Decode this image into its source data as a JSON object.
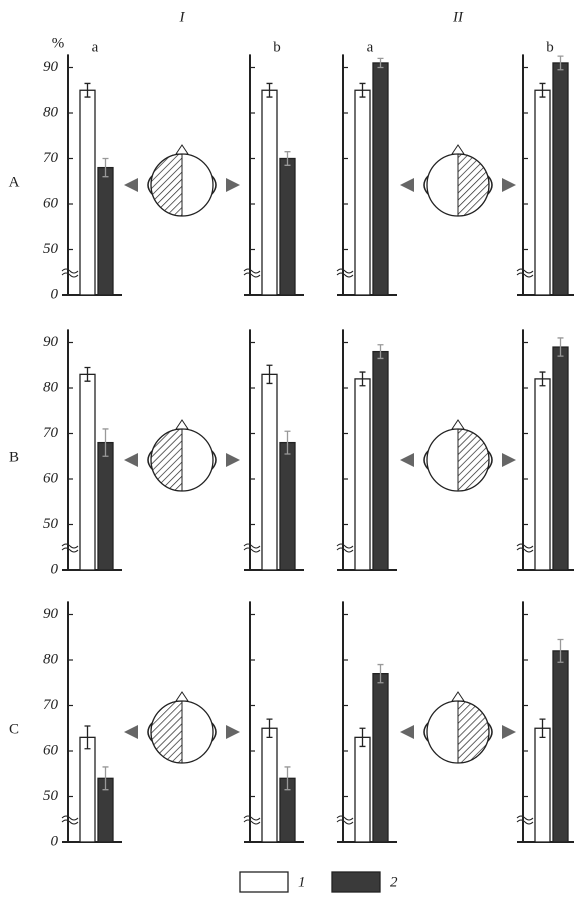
{
  "figure": {
    "columns": [
      "I",
      "II"
    ],
    "rows": [
      "A",
      "B",
      "C"
    ]
  },
  "chart_data": [
    {
      "type": "bar",
      "ylabel": "%",
      "categories": [
        "a"
      ],
      "ylim": [
        0,
        92
      ],
      "ybreak": [
        0,
        40
      ],
      "yticks": [
        0,
        50,
        60,
        70,
        80,
        90
      ],
      "tick_labels": true,
      "series": [
        {
          "name": "1",
          "color": "#ffffff",
          "values": [
            85
          ],
          "errors": [
            1.5
          ]
        },
        {
          "name": "2",
          "color": "#3a3a3a",
          "values": [
            68
          ],
          "errors": [
            2
          ]
        }
      ]
    },
    {
      "type": "bar",
      "categories": [
        "b"
      ],
      "ylim": [
        0,
        92
      ],
      "ybreak": [
        0,
        40
      ],
      "yticks": [
        0,
        50,
        60,
        70,
        80,
        90
      ],
      "tick_labels": false,
      "series": [
        {
          "name": "1",
          "color": "#ffffff",
          "values": [
            85
          ],
          "errors": [
            1.5
          ]
        },
        {
          "name": "2",
          "color": "#3a3a3a",
          "values": [
            70
          ],
          "errors": [
            1.5
          ]
        }
      ]
    },
    {
      "type": "bar",
      "categories": [
        "a"
      ],
      "ylim": [
        0,
        92
      ],
      "ybreak": [
        0,
        40
      ],
      "yticks": [
        0,
        50,
        60,
        70,
        80,
        90
      ],
      "tick_labels": false,
      "series": [
        {
          "name": "1",
          "color": "#ffffff",
          "values": [
            85
          ],
          "errors": [
            1.5
          ]
        },
        {
          "name": "2",
          "color": "#3a3a3a",
          "values": [
            91
          ],
          "errors": [
            1
          ]
        }
      ]
    },
    {
      "type": "bar",
      "categories": [
        "b"
      ],
      "ylim": [
        0,
        92
      ],
      "ybreak": [
        0,
        40
      ],
      "yticks": [
        0,
        50,
        60,
        70,
        80,
        90
      ],
      "tick_labels": false,
      "series": [
        {
          "name": "1",
          "color": "#ffffff",
          "values": [
            85
          ],
          "errors": [
            1.5
          ]
        },
        {
          "name": "2",
          "color": "#3a3a3a",
          "values": [
            91
          ],
          "errors": [
            1.5
          ]
        }
      ]
    },
    {
      "type": "bar",
      "categories": [
        null
      ],
      "ylim": [
        0,
        92
      ],
      "ybreak": [
        0,
        40
      ],
      "yticks": [
        0,
        50,
        60,
        70,
        80,
        90
      ],
      "tick_labels": true,
      "series": [
        {
          "name": "1",
          "color": "#ffffff",
          "values": [
            83
          ],
          "errors": [
            1.5
          ]
        },
        {
          "name": "2",
          "color": "#3a3a3a",
          "values": [
            68
          ],
          "errors": [
            3
          ]
        }
      ]
    },
    {
      "type": "bar",
      "categories": [
        null
      ],
      "ylim": [
        0,
        92
      ],
      "ybreak": [
        0,
        40
      ],
      "yticks": [
        0,
        50,
        60,
        70,
        80,
        90
      ],
      "tick_labels": false,
      "series": [
        {
          "name": "1",
          "color": "#ffffff",
          "values": [
            83
          ],
          "errors": [
            2
          ]
        },
        {
          "name": "2",
          "color": "#3a3a3a",
          "values": [
            68
          ],
          "errors": [
            2.5
          ]
        }
      ]
    },
    {
      "type": "bar",
      "categories": [
        null
      ],
      "ylim": [
        0,
        92
      ],
      "ybreak": [
        0,
        40
      ],
      "yticks": [
        0,
        50,
        60,
        70,
        80,
        90
      ],
      "tick_labels": false,
      "series": [
        {
          "name": "1",
          "color": "#ffffff",
          "values": [
            82
          ],
          "errors": [
            1.5
          ]
        },
        {
          "name": "2",
          "color": "#3a3a3a",
          "values": [
            88
          ],
          "errors": [
            1.5
          ]
        }
      ]
    },
    {
      "type": "bar",
      "categories": [
        null
      ],
      "ylim": [
        0,
        92
      ],
      "ybreak": [
        0,
        40
      ],
      "yticks": [
        0,
        50,
        60,
        70,
        80,
        90
      ],
      "tick_labels": false,
      "series": [
        {
          "name": "1",
          "color": "#ffffff",
          "values": [
            82
          ],
          "errors": [
            1.5
          ]
        },
        {
          "name": "2",
          "color": "#3a3a3a",
          "values": [
            89
          ],
          "errors": [
            2
          ]
        }
      ]
    },
    {
      "type": "bar",
      "categories": [
        null
      ],
      "ylim": [
        0,
        92
      ],
      "ybreak": [
        0,
        40
      ],
      "yticks": [
        0,
        50,
        60,
        70,
        80,
        90
      ],
      "tick_labels": true,
      "series": [
        {
          "name": "1",
          "color": "#ffffff",
          "values": [
            63
          ],
          "errors": [
            2.5
          ]
        },
        {
          "name": "2",
          "color": "#3a3a3a",
          "values": [
            54
          ],
          "errors": [
            2.5
          ]
        }
      ]
    },
    {
      "type": "bar",
      "categories": [
        null
      ],
      "ylim": [
        0,
        92
      ],
      "ybreak": [
        0,
        40
      ],
      "yticks": [
        0,
        50,
        60,
        70,
        80,
        90
      ],
      "tick_labels": false,
      "series": [
        {
          "name": "1",
          "color": "#ffffff",
          "values": [
            65
          ],
          "errors": [
            2
          ]
        },
        {
          "name": "2",
          "color": "#3a3a3a",
          "values": [
            54
          ],
          "errors": [
            2.5
          ]
        }
      ]
    },
    {
      "type": "bar",
      "categories": [
        null
      ],
      "ylim": [
        0,
        92
      ],
      "ybreak": [
        0,
        40
      ],
      "yticks": [
        0,
        50,
        60,
        70,
        80,
        90
      ],
      "tick_labels": false,
      "series": [
        {
          "name": "1",
          "color": "#ffffff",
          "values": [
            63
          ],
          "errors": [
            2
          ]
        },
        {
          "name": "2",
          "color": "#3a3a3a",
          "values": [
            77
          ],
          "errors": [
            2
          ]
        }
      ]
    },
    {
      "type": "bar",
      "categories": [
        null
      ],
      "ylim": [
        0,
        92
      ],
      "ybreak": [
        0,
        40
      ],
      "yticks": [
        0,
        50,
        60,
        70,
        80,
        90
      ],
      "tick_labels": false,
      "series": [
        {
          "name": "1",
          "color": "#ffffff",
          "values": [
            65
          ],
          "errors": [
            2
          ]
        },
        {
          "name": "2",
          "color": "#3a3a3a",
          "values": [
            82
          ],
          "errors": [
            2.5
          ]
        }
      ]
    }
  ]
}
